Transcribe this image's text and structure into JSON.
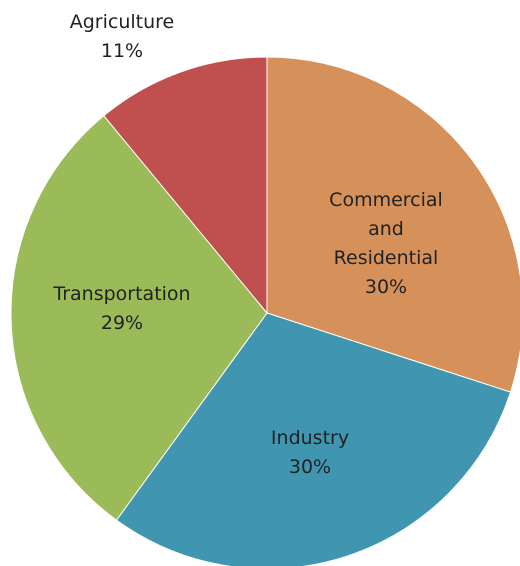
{
  "chart_data": {
    "type": "pie",
    "categories": [
      "Commercial and Residential",
      "Industry",
      "Transportation",
      "Agriculture"
    ],
    "values": [
      30,
      30,
      29,
      11
    ],
    "value_labels": [
      "30%",
      "30%",
      "29%",
      "11%"
    ],
    "colors": [
      "#d6915a",
      "#4096b1",
      "#9bbb59",
      "#c0504d"
    ]
  }
}
